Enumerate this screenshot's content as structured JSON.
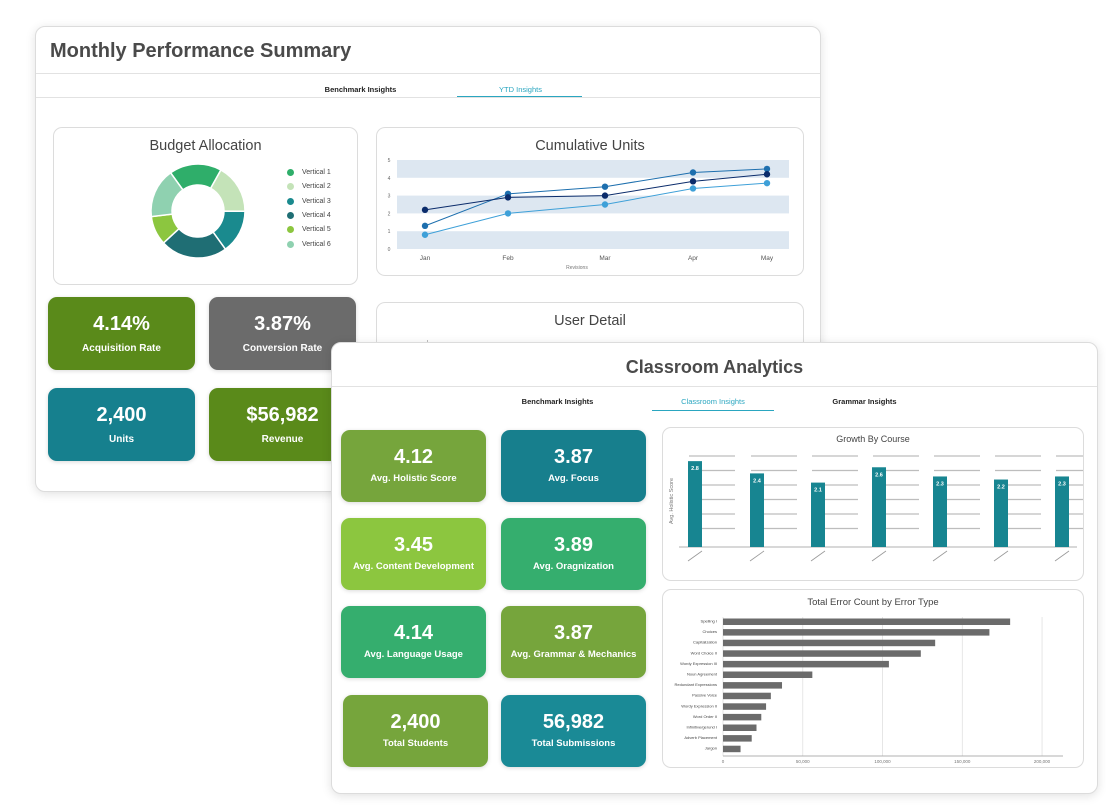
{
  "monthly": {
    "title": "Monthly Performance Summary",
    "tabs": [
      {
        "label": "Benchmark Insights",
        "active": false
      },
      {
        "label": "YTD Insights",
        "active": true
      }
    ],
    "budget": {
      "title": "Budget Allocation",
      "legend": [
        "Vertical 1",
        "Vertical 2",
        "Vertical 3",
        "Vertical 4",
        "Vertical 5",
        "Vertical 6"
      ],
      "colors": [
        "#2fae6a",
        "#c4e3b8",
        "#1a8a8e",
        "#1f6e74",
        "#8cc63f",
        "#8fd1b0"
      ]
    },
    "cumulative": {
      "title": "Cumulative Units"
    },
    "user_detail": {
      "title": "User Detail",
      "fragment": "I..."
    },
    "tiles": [
      {
        "value": "4.14%",
        "label": "Acquisition Rate",
        "color": "#5a8a1a"
      },
      {
        "value": "3.87%",
        "label": "Conversion Rate",
        "color": "#6b6b6b"
      },
      {
        "value": "2,400",
        "label": "Units",
        "color": "#16808e"
      },
      {
        "value": "$56,982",
        "label": "Revenue",
        "color": "#5a8a1a"
      }
    ]
  },
  "classroom": {
    "title": "Classroom Analytics",
    "tabs": [
      {
        "label": "Benchmark Insights",
        "active": false
      },
      {
        "label": "Classroom Insights",
        "active": true
      },
      {
        "label": "Grammar Insights",
        "active": false
      }
    ],
    "tiles": [
      {
        "value": "4.12",
        "label": "Avg. Holistic Score",
        "color": "#76a53c"
      },
      {
        "value": "3.87",
        "label": "Avg. Focus",
        "color": "#177f8d"
      },
      {
        "value": "3.45",
        "label": "Avg. Content Development",
        "color": "#8cc63f"
      },
      {
        "value": "3.89",
        "label": "Avg. Oragnization",
        "color": "#35ae6e"
      },
      {
        "value": "4.14",
        "label": "Avg. Language Usage",
        "color": "#35ae6e"
      },
      {
        "value": "3.87",
        "label": "Avg. Grammar & Mechanics",
        "color": "#76a53c"
      },
      {
        "value": "2,400",
        "label": "Total Students",
        "color": "#76a53c"
      },
      {
        "value": "56,982",
        "label": "Total Submissions",
        "color": "#1a8a96"
      }
    ],
    "growth": {
      "title": "Growth By Course"
    },
    "errors": {
      "title": "Total Error Count by Error Type"
    }
  },
  "chart_data": [
    {
      "type": "pie",
      "title": "Budget Allocation",
      "categories": [
        "Vertical 1",
        "Vertical 2",
        "Vertical 3",
        "Vertical 4",
        "Vertical 5",
        "Vertical 6"
      ],
      "values": [
        18,
        17,
        15,
        23,
        10,
        17
      ]
    },
    {
      "type": "line",
      "title": "Cumulative Units",
      "xlabel": "Revisions",
      "ylabel": "",
      "categories": [
        "Jan",
        "Feb",
        "Mar",
        "Apr",
        "May"
      ],
      "ylim": [
        0,
        5
      ],
      "yticks": [
        "0",
        "1",
        "2",
        "3",
        "4",
        "5"
      ],
      "series": [
        {
          "values": [
            1.3,
            3.1,
            3.5,
            4.3,
            4.5
          ],
          "color": "#1d6fae"
        },
        {
          "values": [
            2.2,
            2.9,
            3.0,
            3.8,
            4.2
          ],
          "color": "#0b2c6b"
        },
        {
          "values": [
            0.8,
            2.0,
            2.5,
            3.4,
            3.7
          ],
          "color": "#3ea0d8"
        }
      ]
    },
    {
      "type": "bar",
      "title": "Growth By Course",
      "ylabel": "Avg. Holistic Score",
      "categories": [
        "",
        "",
        "",
        "",
        "",
        "",
        ""
      ],
      "values": [
        2.8,
        2.4,
        2.1,
        2.6,
        2.3,
        2.2,
        2.3
      ],
      "labels": [
        "2.8",
        "2.4",
        "2.1",
        "2.6",
        "2.3",
        "2.2",
        "2.3"
      ],
      "ylim": [
        0,
        3
      ],
      "color": "#178591"
    },
    {
      "type": "bar",
      "orientation": "horizontal",
      "title": "Total Error Count by Error Type",
      "categories": [
        "Spelling I",
        "Choices",
        "Capitalization",
        "Word Choice II",
        "Wordy Expression III",
        "Noun Agreement",
        "Redundant Expressions",
        "Passive Voice",
        "Wordy Expression II",
        "Word Order II",
        "Infinitive/gerund I",
        "Adverb Placement",
        "Jargon"
      ],
      "values": [
        180000,
        167000,
        133000,
        124000,
        104000,
        56000,
        37000,
        30000,
        27000,
        24000,
        21000,
        18000,
        11000
      ],
      "xticks": [
        "0",
        "50,000",
        "100,000",
        "150,000",
        "200,000"
      ],
      "xlim": [
        0,
        210000
      ],
      "color": "#6b6b6b"
    }
  ]
}
